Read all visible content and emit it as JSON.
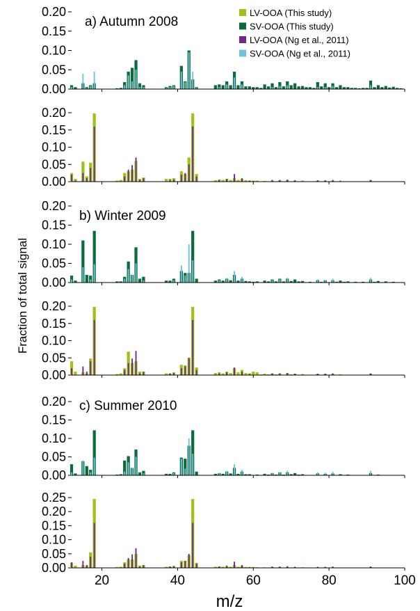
{
  "chart_data": {
    "type": "bar",
    "ylabel": "Fraction of total signal",
    "xlabel": "m/z",
    "xlim": [
      12,
      100
    ],
    "x_ticks": [
      "20",
      "40",
      "60",
      "80",
      "100"
    ],
    "legend": {
      "position": "top-right",
      "entries": [
        {
          "name": "LV-OOA (This study)",
          "color": "#9dc31b"
        },
        {
          "name": "SV-OOA (This study)",
          "color": "#0a6b3b"
        },
        {
          "name": "LV-OOA (Ng et al., 2011)",
          "color": "#6e2a86"
        },
        {
          "name": "SV-OOA (Ng et al., 2011)",
          "color": "#6cc3dc"
        }
      ]
    },
    "colors": {
      "lv_this": "#9dc31b",
      "sv_this": "#0a6b3b",
      "lv_ng": "#6e2a86",
      "sv_ng": "#6cc3dc"
    },
    "panels": [
      {
        "id": "autumn-sv",
        "title": "a) Autumn 2008",
        "kind": "sv",
        "ylim": [
          0,
          0.2
        ],
        "y_ticks": [
          "0.20",
          "0.15",
          "0.10",
          "0.05",
          "0.00"
        ],
        "study": {
          "12": 0.01,
          "13": 0.005,
          "15": 0.015,
          "16": 0.005,
          "17": 0.01,
          "18": 0.015,
          "24": 0.002,
          "25": 0.003,
          "26": 0.018,
          "27": 0.045,
          "28": 0.055,
          "29": 0.075,
          "30": 0.015,
          "31": 0.01,
          "37": 0.005,
          "38": 0.008,
          "39": 0.01,
          "41": 0.06,
          "42": 0.02,
          "43": 0.1,
          "44": 0.025,
          "45": 0.005,
          "50": 0.01,
          "51": 0.012,
          "52": 0.01,
          "53": 0.02,
          "54": 0.01,
          "55": 0.045,
          "56": 0.01,
          "57": 0.02,
          "58": 0.007,
          "59": 0.007,
          "60": 0.005,
          "61": 0.005,
          "62": 0.003,
          "63": 0.012,
          "64": 0.007,
          "65": 0.015,
          "66": 0.005,
          "67": 0.018,
          "68": 0.007,
          "69": 0.02,
          "70": 0.01,
          "71": 0.015,
          "72": 0.007,
          "73": 0.008,
          "74": 0.005,
          "75": 0.005,
          "76": 0.003,
          "77": 0.018,
          "78": 0.007,
          "79": 0.015,
          "80": 0.005,
          "81": 0.015,
          "82": 0.005,
          "83": 0.01,
          "84": 0.005,
          "85": 0.005,
          "86": 0.003,
          "87": 0.003,
          "88": 0.002,
          "89": 0.003,
          "90": 0.003,
          "91": 0.022,
          "92": 0.005,
          "93": 0.01,
          "94": 0.005,
          "95": 0.008,
          "96": 0.004,
          "97": 0.006,
          "98": 0.003,
          "99": 0.002
        },
        "ng": {
          "12": 0.005,
          "15": 0.04,
          "16": 0.003,
          "17": 0.008,
          "18": 0.045,
          "26": 0.01,
          "27": 0.035,
          "28": 0.02,
          "29": 0.05,
          "30": 0.005,
          "31": 0.005,
          "37": 0.003,
          "38": 0.005,
          "39": 0.008,
          "41": 0.045,
          "42": 0.018,
          "43": 0.095,
          "44": 0.045,
          "45": 0.003,
          "51": 0.005,
          "53": 0.012,
          "55": 0.03,
          "57": 0.012,
          "65": 0.005,
          "67": 0.008,
          "69": 0.01,
          "77": 0.005,
          "79": 0.005,
          "81": 0.008,
          "91": 0.01
        }
      },
      {
        "id": "autumn-lv",
        "title": "",
        "kind": "lv",
        "ylim": [
          0,
          0.2
        ],
        "y_ticks": [
          "0.20",
          "0.15",
          "0.10",
          "0.05",
          "0.00"
        ],
        "study": {
          "12": 0.025,
          "13": 0.008,
          "15": 0.058,
          "16": 0.015,
          "17": 0.055,
          "18": 0.198,
          "24": 0.003,
          "25": 0.005,
          "26": 0.025,
          "27": 0.03,
          "28": 0.035,
          "29": 0.06,
          "30": 0.008,
          "31": 0.012,
          "37": 0.008,
          "38": 0.008,
          "39": 0.01,
          "41": 0.03,
          "42": 0.022,
          "43": 0.07,
          "44": 0.198,
          "45": 0.022,
          "50": 0.004,
          "51": 0.006,
          "52": 0.005,
          "53": 0.008,
          "54": 0.005,
          "55": 0.01,
          "56": 0.005,
          "57": 0.008,
          "58": 0.004,
          "59": 0.003,
          "60": 0.003,
          "61": 0.003,
          "63": 0.002,
          "65": 0.003,
          "67": 0.004,
          "69": 0.004,
          "71": 0.003,
          "73": 0.003,
          "77": 0.003,
          "79": 0.003,
          "81": 0.003,
          "91": 0.004
        },
        "ng": {
          "12": 0.02,
          "13": 0.003,
          "15": 0.025,
          "16": 0.01,
          "17": 0.04,
          "18": 0.16,
          "26": 0.015,
          "27": 0.035,
          "28": 0.048,
          "29": 0.07,
          "30": 0.005,
          "31": 0.01,
          "38": 0.005,
          "39": 0.006,
          "41": 0.02,
          "42": 0.025,
          "43": 0.05,
          "44": 0.16,
          "45": 0.015,
          "51": 0.005,
          "53": 0.008,
          "55": 0.022,
          "57": 0.01,
          "59": 0.003,
          "65": 0.005,
          "67": 0.005,
          "69": 0.006,
          "71": 0.004,
          "77": 0.004,
          "79": 0.004,
          "81": 0.005,
          "83": 0.003,
          "91": 0.005
        }
      },
      {
        "id": "winter-sv",
        "title": "b) Winter 2009",
        "kind": "sv",
        "ylim": [
          0,
          0.2
        ],
        "y_ticks": [
          "0.20",
          "0.15",
          "0.10",
          "0.05",
          "0.00"
        ],
        "study": {
          "12": 0.018,
          "13": 0.005,
          "15": 0.11,
          "16": 0.02,
          "17": 0.018,
          "18": 0.135,
          "24": 0.003,
          "25": 0.003,
          "26": 0.015,
          "27": 0.055,
          "28": 0.02,
          "29": 0.092,
          "30": 0.01,
          "31": 0.015,
          "37": 0.005,
          "38": 0.005,
          "39": 0.01,
          "41": 0.03,
          "42": 0.025,
          "43": 0.025,
          "44": 0.135,
          "45": 0.01,
          "50": 0.005,
          "51": 0.008,
          "52": 0.005,
          "53": 0.01,
          "54": 0.006,
          "55": 0.02,
          "56": 0.005,
          "57": 0.01,
          "58": 0.004,
          "59": 0.003,
          "60": 0.002,
          "61": 0.003,
          "63": 0.005,
          "64": 0.003,
          "65": 0.008,
          "66": 0.003,
          "67": 0.01,
          "68": 0.003,
          "69": 0.01,
          "70": 0.004,
          "71": 0.008,
          "72": 0.003,
          "73": 0.004,
          "75": 0.002,
          "77": 0.006,
          "78": 0.002,
          "79": 0.006,
          "81": 0.006,
          "82": 0.002,
          "83": 0.005,
          "84": 0.002,
          "85": 0.003,
          "87": 0.002,
          "89": 0.002,
          "91": 0.008,
          "92": 0.002,
          "93": 0.004,
          "95": 0.003,
          "97": 0.002
        },
        "ng": {
          "12": 0.008,
          "15": 0.04,
          "17": 0.008,
          "18": 0.048,
          "26": 0.01,
          "27": 0.035,
          "28": 0.02,
          "29": 0.05,
          "31": 0.005,
          "39": 0.006,
          "41": 0.045,
          "42": 0.018,
          "43": 0.1,
          "44": 0.058,
          "51": 0.006,
          "53": 0.012,
          "55": 0.03,
          "57": 0.015,
          "65": 0.006,
          "67": 0.008,
          "69": 0.012,
          "77": 0.008,
          "79": 0.007,
          "81": 0.01,
          "91": 0.012
        }
      },
      {
        "id": "winter-lv",
        "title": "",
        "kind": "lv",
        "ylim": [
          0,
          0.2
        ],
        "y_ticks": [
          "0.20",
          "0.15",
          "0.10",
          "0.05",
          "0.00"
        ],
        "study": {
          "12": 0.04,
          "13": 0.01,
          "15": 0.008,
          "16": 0.005,
          "17": 0.048,
          "18": 0.198,
          "24": 0.003,
          "25": 0.005,
          "26": 0.02,
          "27": 0.068,
          "28": 0.035,
          "29": 0.04,
          "30": 0.01,
          "31": 0.01,
          "37": 0.005,
          "38": 0.005,
          "39": 0.008,
          "41": 0.03,
          "42": 0.028,
          "43": 0.05,
          "44": 0.198,
          "45": 0.022,
          "50": 0.006,
          "51": 0.008,
          "52": 0.005,
          "53": 0.01,
          "54": 0.006,
          "55": 0.02,
          "56": 0.008,
          "57": 0.015,
          "58": 0.006,
          "59": 0.005,
          "60": 0.01,
          "61": 0.008,
          "62": 0.002,
          "63": 0.004,
          "64": 0.002,
          "65": 0.005,
          "66": 0.002,
          "67": 0.005,
          "69": 0.006,
          "70": 0.002,
          "71": 0.004,
          "73": 0.003,
          "77": 0.004,
          "79": 0.004,
          "81": 0.004,
          "83": 0.002,
          "91": 0.004
        },
        "ng": {
          "12": 0.02,
          "15": 0.025,
          "16": 0.01,
          "17": 0.04,
          "18": 0.16,
          "26": 0.015,
          "27": 0.035,
          "28": 0.048,
          "29": 0.07,
          "30": 0.005,
          "31": 0.01,
          "38": 0.005,
          "39": 0.006,
          "41": 0.02,
          "42": 0.025,
          "43": 0.05,
          "44": 0.16,
          "45": 0.015,
          "51": 0.005,
          "53": 0.008,
          "55": 0.022,
          "57": 0.01,
          "59": 0.003,
          "65": 0.005,
          "67": 0.005,
          "69": 0.006,
          "71": 0.004,
          "77": 0.004,
          "79": 0.004,
          "81": 0.005,
          "91": 0.005
        }
      },
      {
        "id": "summer-sv",
        "title": "c) Summer 2010",
        "kind": "sv",
        "ylim": [
          0,
          0.2
        ],
        "y_ticks": [
          "0.20",
          "0.15",
          "0.10",
          "0.05",
          "0.00"
        ],
        "study": {
          "12": 0.03,
          "13": 0.005,
          "15": 0.038,
          "16": 0.025,
          "17": 0.015,
          "18": 0.122,
          "24": 0.002,
          "25": 0.003,
          "26": 0.04,
          "27": 0.052,
          "28": 0.02,
          "29": 0.07,
          "30": 0.008,
          "31": 0.012,
          "37": 0.004,
          "38": 0.004,
          "39": 0.008,
          "41": 0.048,
          "42": 0.045,
          "43": 0.08,
          "44": 0.122,
          "45": 0.01,
          "50": 0.004,
          "51": 0.006,
          "52": 0.004,
          "53": 0.01,
          "54": 0.005,
          "55": 0.02,
          "56": 0.004,
          "57": 0.01,
          "58": 0.003,
          "59": 0.003,
          "61": 0.002,
          "63": 0.004,
          "64": 0.002,
          "65": 0.006,
          "66": 0.002,
          "67": 0.008,
          "68": 0.002,
          "69": 0.008,
          "70": 0.003,
          "71": 0.006,
          "72": 0.002,
          "73": 0.003,
          "77": 0.005,
          "79": 0.004,
          "81": 0.005,
          "83": 0.003,
          "85": 0.002,
          "91": 0.006,
          "93": 0.002
        },
        "ng": {
          "12": 0.008,
          "15": 0.04,
          "17": 0.008,
          "18": 0.048,
          "26": 0.01,
          "27": 0.035,
          "28": 0.02,
          "29": 0.05,
          "31": 0.005,
          "39": 0.006,
          "41": 0.045,
          "42": 0.018,
          "43": 0.1,
          "44": 0.058,
          "51": 0.006,
          "53": 0.012,
          "55": 0.03,
          "57": 0.015,
          "65": 0.006,
          "67": 0.008,
          "69": 0.012,
          "77": 0.008,
          "79": 0.007,
          "81": 0.01,
          "91": 0.012
        }
      },
      {
        "id": "summer-lv",
        "title": "",
        "kind": "lv",
        "ylim": [
          0,
          0.25
        ],
        "y_ticks": [
          "0.25",
          "0.20",
          "0.15",
          "0.10",
          "0.05",
          "0.00"
        ],
        "study": {
          "12": 0.018,
          "13": 0.008,
          "15": 0.01,
          "16": 0.008,
          "17": 0.055,
          "18": 0.245,
          "24": 0.003,
          "25": 0.004,
          "26": 0.02,
          "27": 0.03,
          "28": 0.03,
          "29": 0.05,
          "30": 0.008,
          "31": 0.01,
          "37": 0.004,
          "38": 0.005,
          "39": 0.007,
          "41": 0.025,
          "42": 0.025,
          "43": 0.045,
          "44": 0.245,
          "45": 0.018,
          "50": 0.004,
          "51": 0.005,
          "52": 0.004,
          "53": 0.006,
          "54": 0.004,
          "55": 0.01,
          "56": 0.004,
          "57": 0.007,
          "58": 0.003,
          "59": 0.002,
          "60": 0.003,
          "61": 0.002,
          "63": 0.002,
          "65": 0.003,
          "67": 0.003,
          "69": 0.003,
          "71": 0.002,
          "73": 0.002,
          "77": 0.002,
          "79": 0.002,
          "81": 0.002,
          "91": 0.003
        },
        "ng": {
          "12": 0.02,
          "15": 0.025,
          "16": 0.01,
          "17": 0.04,
          "18": 0.16,
          "26": 0.015,
          "27": 0.035,
          "28": 0.048,
          "29": 0.07,
          "30": 0.005,
          "31": 0.01,
          "38": 0.005,
          "39": 0.006,
          "41": 0.02,
          "42": 0.025,
          "43": 0.05,
          "44": 0.16,
          "45": 0.015,
          "51": 0.005,
          "53": 0.008,
          "55": 0.022,
          "57": 0.01,
          "59": 0.003,
          "65": 0.005,
          "67": 0.005,
          "69": 0.006,
          "71": 0.004,
          "77": 0.004,
          "79": 0.004,
          "81": 0.005,
          "91": 0.005
        }
      }
    ]
  }
}
